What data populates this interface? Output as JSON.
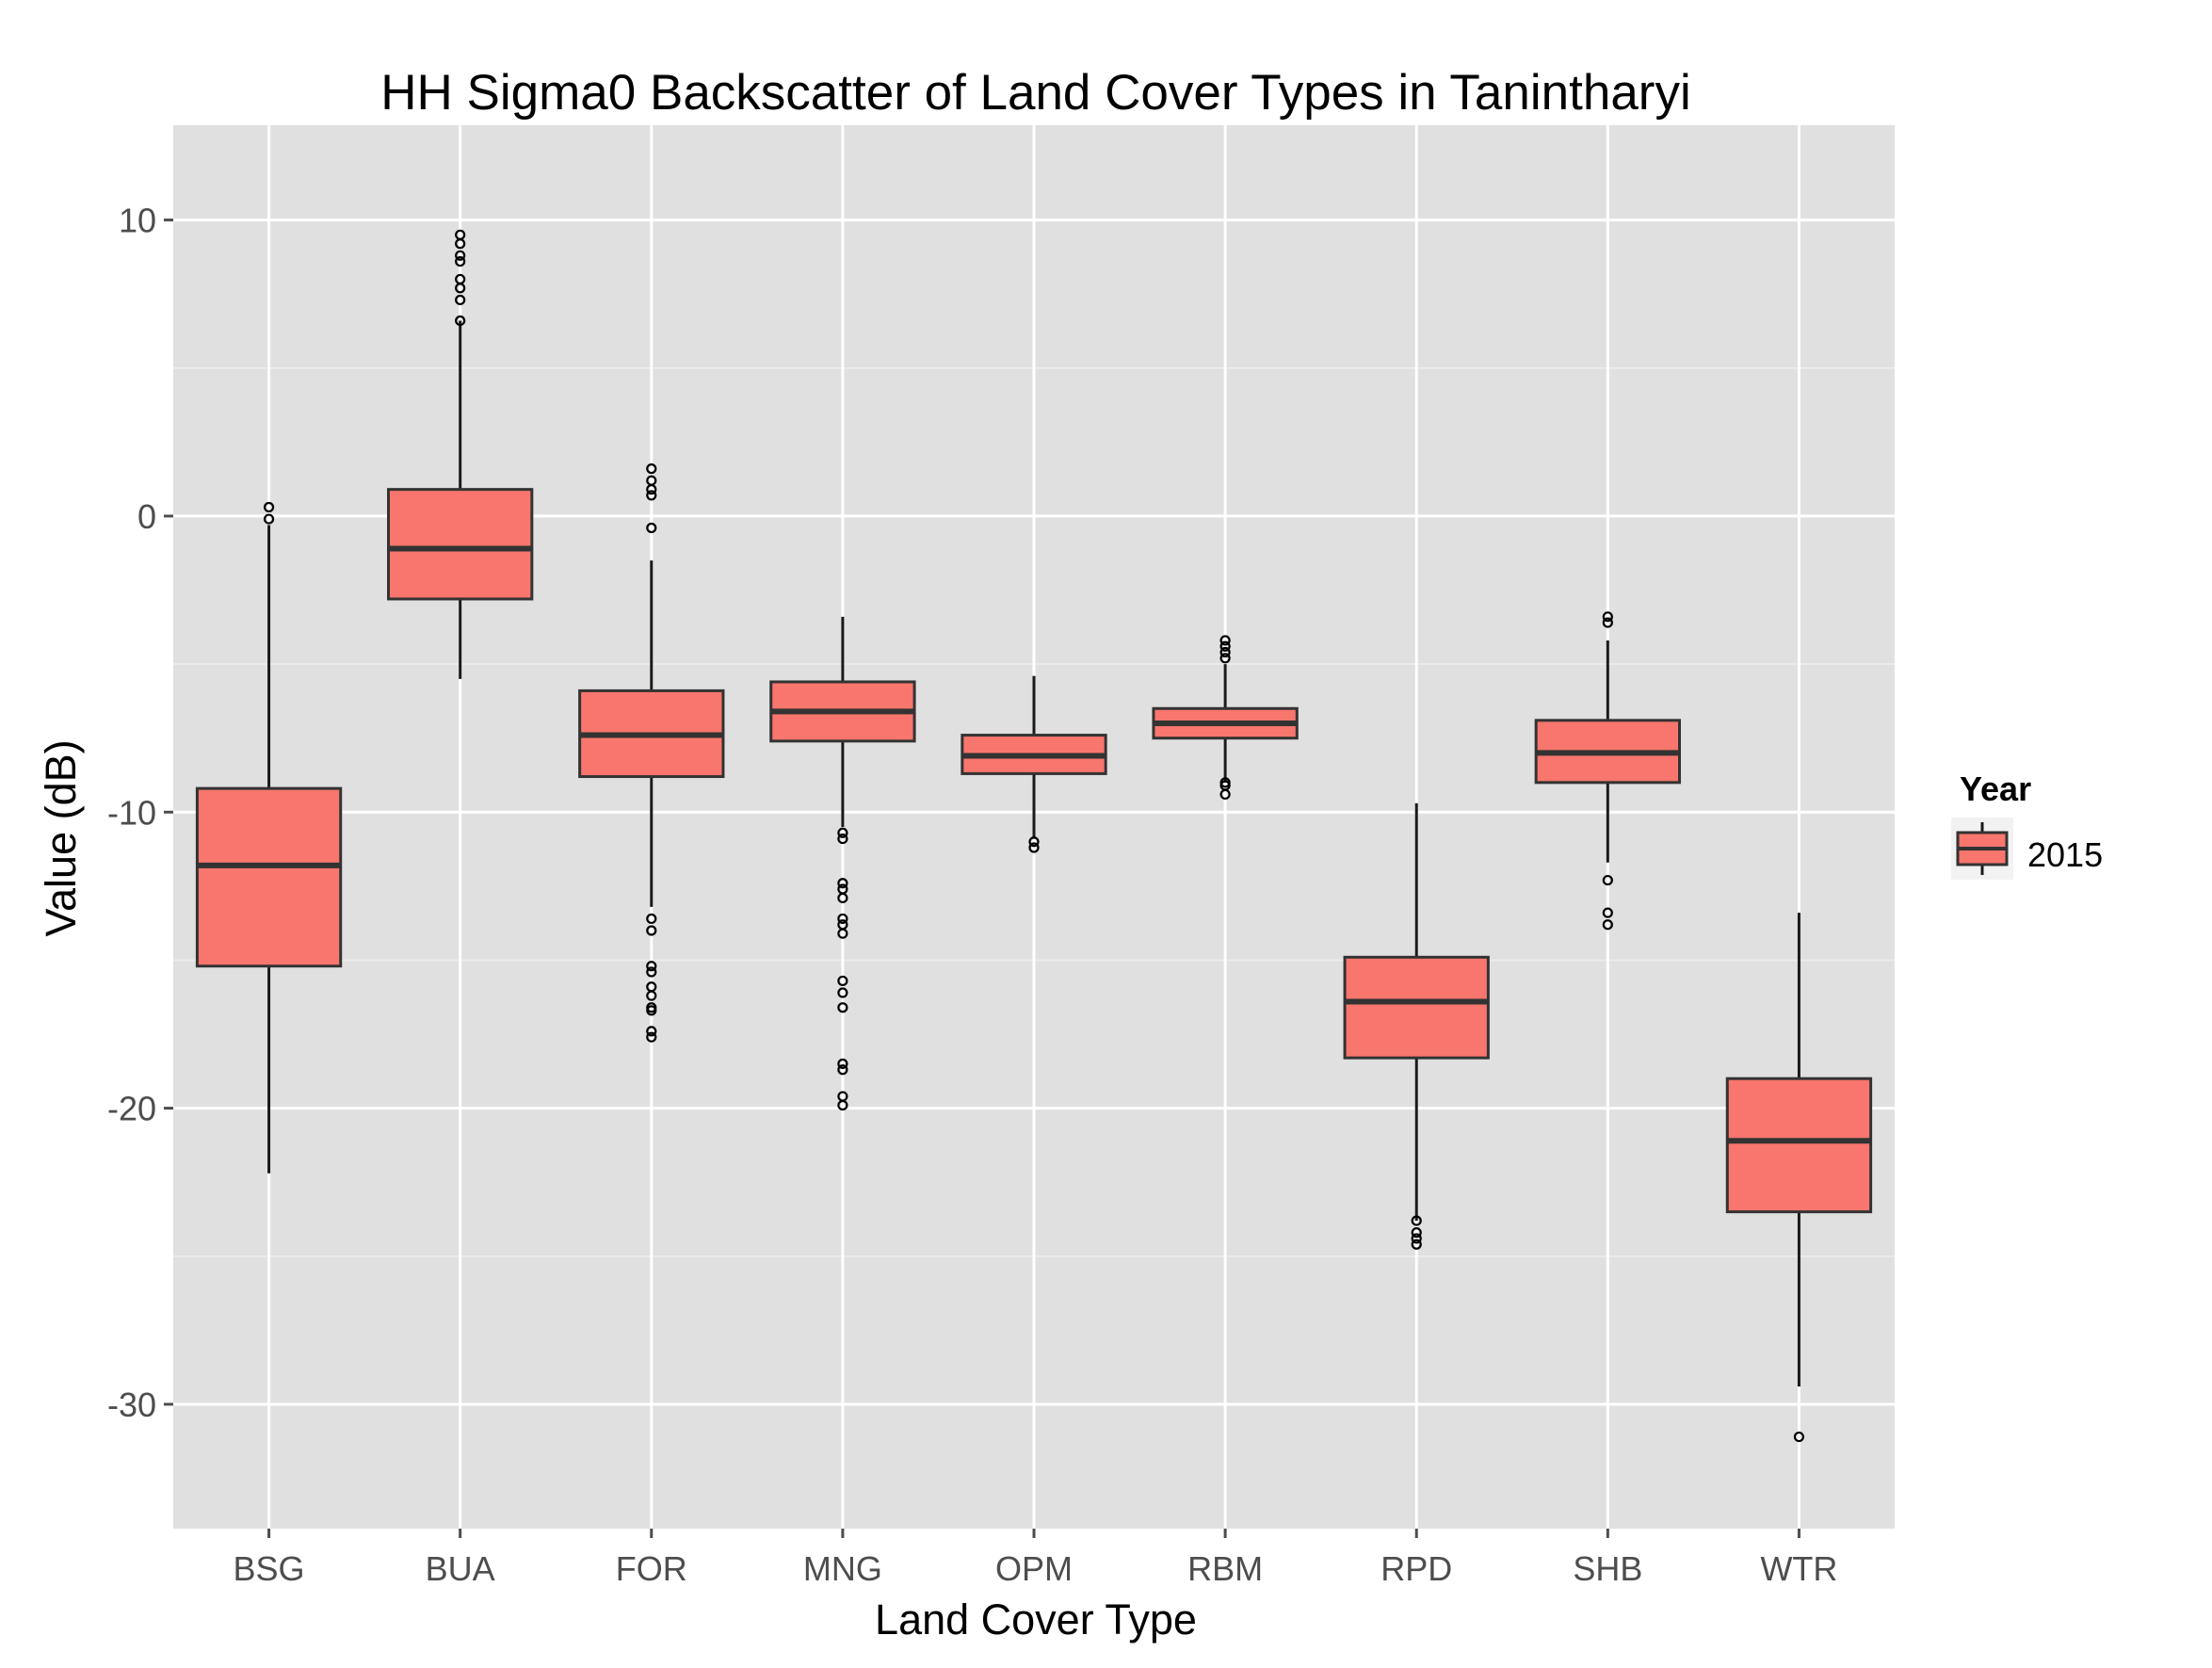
{
  "chart_data": {
    "type": "box",
    "title": "HH Sigma0 Backscatter of Land Cover Types in Tanintharyi",
    "xlabel": "Land Cover Type",
    "ylabel": "Value (dB)",
    "ylim": [
      -34.2,
      13.2
    ],
    "yticks": [
      10,
      0,
      -10,
      -20,
      -30
    ],
    "ytick_labels": [
      "10",
      "0",
      "-10",
      "-20",
      "-30"
    ],
    "grid": true,
    "legend": {
      "title": "Year",
      "position": "right",
      "entries": [
        {
          "label": "2015",
          "color": "#f8766d"
        }
      ]
    },
    "colors": {
      "panel": "#e0e0e0",
      "grid_major": "#ffffff",
      "grid_minor": "#ededed",
      "box_fill": "#f8766d",
      "box_line": "#333333",
      "whisker": "#1a1a1a",
      "outlier": "#000000"
    },
    "categories": [
      "BSG",
      "BUA",
      "FOR",
      "MNG",
      "OPM",
      "RBM",
      "RPD",
      "SHB",
      "WTR"
    ],
    "series": [
      {
        "name": "2015",
        "boxes": [
          {
            "category": "BSG",
            "whisker_low": -22.2,
            "q1": -15.2,
            "median": -11.8,
            "q3": -9.2,
            "whisker_high": -0.3,
            "outliers": [
              0.3,
              -0.1
            ]
          },
          {
            "category": "BUA",
            "whisker_low": -5.5,
            "q1": -2.8,
            "median": -1.1,
            "q3": 0.9,
            "whisker_high": 6.6,
            "outliers": [
              6.6,
              7.3,
              7.7,
              8.0,
              8.6,
              8.8,
              9.2,
              9.5
            ]
          },
          {
            "category": "FOR",
            "whisker_low": -13.2,
            "q1": -8.8,
            "median": -7.4,
            "q3": -5.9,
            "whisker_high": -1.5,
            "outliers": [
              -0.4,
              0.7,
              0.9,
              1.2,
              1.6,
              -13.6,
              -14.0,
              -15.2,
              -15.4,
              -15.9,
              -16.2,
              -16.6,
              -16.7,
              -17.4,
              -17.6
            ]
          },
          {
            "category": "MNG",
            "whisker_low": -10.5,
            "q1": -7.6,
            "median": -6.6,
            "q3": -5.6,
            "whisker_high": -3.4,
            "outliers": [
              -10.7,
              -10.9,
              -12.4,
              -12.6,
              -12.9,
              -13.6,
              -13.8,
              -14.1,
              -15.7,
              -16.1,
              -16.6,
              -18.5,
              -18.7,
              -19.6,
              -19.9
            ]
          },
          {
            "category": "OPM",
            "whisker_low": -10.9,
            "q1": -8.7,
            "median": -8.1,
            "q3": -7.4,
            "whisker_high": -5.4,
            "outliers": [
              -11.0,
              -11.2
            ]
          },
          {
            "category": "RBM",
            "whisker_low": -9.0,
            "q1": -7.5,
            "median": -7.0,
            "q3": -6.5,
            "whisker_high": -5.0,
            "outliers": [
              -4.2,
              -4.4,
              -4.6,
              -4.8,
              -9.0,
              -9.1,
              -9.4
            ]
          },
          {
            "category": "RPD",
            "whisker_low": -23.8,
            "q1": -18.3,
            "median": -16.4,
            "q3": -14.9,
            "whisker_high": -9.7,
            "outliers": [
              -23.8,
              -24.2,
              -24.4,
              -24.6
            ]
          },
          {
            "category": "SHB",
            "whisker_low": -11.7,
            "q1": -9.0,
            "median": -8.0,
            "q3": -6.9,
            "whisker_high": -4.2,
            "outliers": [
              -3.4,
              -3.6,
              -12.3,
              -13.4,
              -13.8
            ]
          },
          {
            "category": "WTR",
            "whisker_low": -29.4,
            "q1": -23.5,
            "median": -21.1,
            "q3": -19.0,
            "whisker_high": -13.4,
            "outliers": [
              -31.1
            ]
          }
        ]
      }
    ]
  }
}
